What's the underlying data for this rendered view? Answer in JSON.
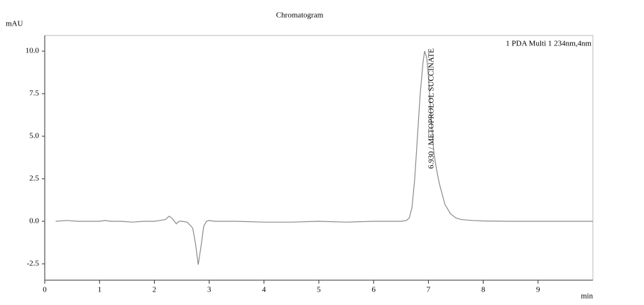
{
  "chart_data": {
    "type": "line",
    "title": "Chromatogram",
    "y_label": "mAU",
    "x_label": "min",
    "legend": "1 PDA Multi 1 234nm,4nm",
    "annotation": {
      "x": 6.93,
      "text": "6.930 / METOPROLOL SUCCINATE"
    },
    "xlim": [
      0,
      10
    ],
    "ylim": [
      -3.46,
      10.92
    ],
    "xticks": [
      0,
      1,
      2,
      3,
      4,
      5,
      6,
      7,
      8,
      9
    ],
    "yticks": [
      {
        "value": 10,
        "label": "10.0"
      },
      {
        "value": 7.5,
        "label": "7.5"
      },
      {
        "value": 5,
        "label": "5.0"
      },
      {
        "value": 2.5,
        "label": "2.5"
      },
      {
        "value": 0,
        "label": "0.0"
      },
      -2.5
    ],
    "series": [
      {
        "color": "#8c8c8c",
        "x": [
          0.2,
          0.4,
          0.6,
          0.8,
          1.0,
          1.1,
          1.2,
          1.4,
          1.6,
          1.8,
          2.0,
          2.1,
          2.2,
          2.27,
          2.33,
          2.4,
          2.45,
          2.5,
          2.6,
          2.7,
          2.75,
          2.8,
          2.85,
          2.9,
          2.95,
          3.0,
          3.1,
          3.2,
          3.5,
          4.0,
          4.5,
          5.0,
          5.5,
          6.0,
          6.3,
          6.5,
          6.6,
          6.65,
          6.7,
          6.75,
          6.8,
          6.85,
          6.9,
          6.93,
          6.97,
          7.0,
          7.05,
          7.1,
          7.15,
          7.2,
          7.3,
          7.4,
          7.5,
          7.6,
          7.8,
          8.0,
          8.5,
          9.0,
          9.5,
          10.0
        ],
        "values": [
          0.0,
          0.05,
          0.0,
          0.0,
          0.0,
          0.05,
          0.0,
          0.0,
          -0.05,
          0.0,
          0.0,
          0.05,
          0.1,
          0.3,
          0.15,
          -0.15,
          0.0,
          0.0,
          -0.05,
          -0.4,
          -1.3,
          -2.55,
          -1.5,
          -0.3,
          0.0,
          0.05,
          0.0,
          0.0,
          0.0,
          -0.05,
          -0.05,
          0.0,
          -0.05,
          0.0,
          0.0,
          0.0,
          0.05,
          0.2,
          0.8,
          2.5,
          5.0,
          7.5,
          9.3,
          10.0,
          9.6,
          8.5,
          6.0,
          4.0,
          3.0,
          2.2,
          1.0,
          0.45,
          0.2,
          0.1,
          0.05,
          0.02,
          0.0,
          0.0,
          0.0,
          0.0
        ]
      }
    ]
  }
}
